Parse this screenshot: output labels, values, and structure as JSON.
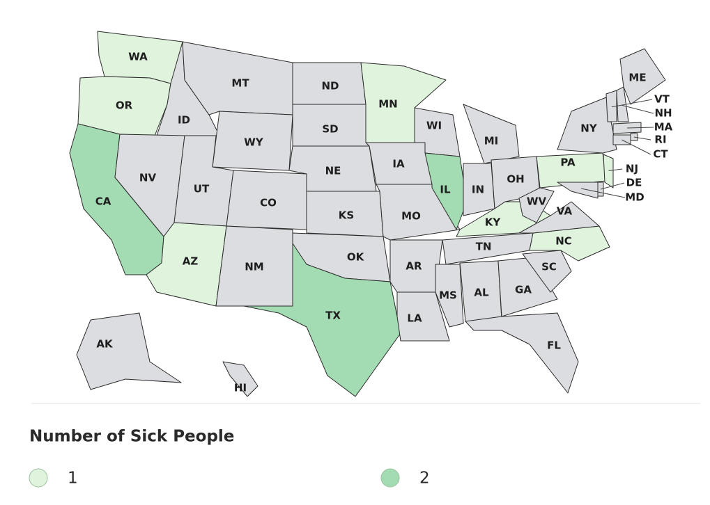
{
  "map": {
    "states": [
      {
        "label": "WA",
        "value": 1
      },
      {
        "label": "OR",
        "value": 1
      },
      {
        "label": "CA",
        "value": 2
      },
      {
        "label": "ID",
        "value": null
      },
      {
        "label": "MT",
        "value": null
      },
      {
        "label": "ND",
        "value": null
      },
      {
        "label": "SD",
        "value": null
      },
      {
        "label": "WY",
        "value": null
      },
      {
        "label": "NV",
        "value": null
      },
      {
        "label": "UT",
        "value": null
      },
      {
        "label": "CO",
        "value": null
      },
      {
        "label": "AZ",
        "value": 1
      },
      {
        "label": "NM",
        "value": null
      },
      {
        "label": "NE",
        "value": null
      },
      {
        "label": "KS",
        "value": null
      },
      {
        "label": "OK",
        "value": null
      },
      {
        "label": "TX",
        "value": 2
      },
      {
        "label": "MN",
        "value": 1
      },
      {
        "label": "IA",
        "value": null
      },
      {
        "label": "MO",
        "value": null
      },
      {
        "label": "AR",
        "value": null
      },
      {
        "label": "LA",
        "value": null
      },
      {
        "label": "WI",
        "value": null
      },
      {
        "label": "IL",
        "value": 2
      },
      {
        "label": "MI",
        "value": null
      },
      {
        "label": "IN",
        "value": null
      },
      {
        "label": "OH",
        "value": null
      },
      {
        "label": "KY",
        "value": 1
      },
      {
        "label": "TN",
        "value": null
      },
      {
        "label": "MS",
        "value": null
      },
      {
        "label": "AL",
        "value": null
      },
      {
        "label": "GA",
        "value": null
      },
      {
        "label": "FL",
        "value": null
      },
      {
        "label": "SC",
        "value": null
      },
      {
        "label": "NC",
        "value": 1
      },
      {
        "label": "VA",
        "value": null
      },
      {
        "label": "WV",
        "value": null
      },
      {
        "label": "PA",
        "value": 1
      },
      {
        "label": "NY",
        "value": null
      },
      {
        "label": "ME",
        "value": null
      },
      {
        "label": "VT",
        "value": null
      },
      {
        "label": "NH",
        "value": null
      },
      {
        "label": "MA",
        "value": null
      },
      {
        "label": "RI",
        "value": null
      },
      {
        "label": "CT",
        "value": null
      },
      {
        "label": "NJ",
        "value": 1
      },
      {
        "label": "DE",
        "value": null
      },
      {
        "label": "MD",
        "value": null
      },
      {
        "label": "AK",
        "value": null
      },
      {
        "label": "HI",
        "value": null
      }
    ],
    "no_data_color": "#dcdde0"
  },
  "legend": {
    "title": "Number of Sick People",
    "items": [
      {
        "value": 1,
        "color": "#dff3dd"
      },
      {
        "value": 2,
        "color": "#a3dbb3"
      }
    ]
  }
}
